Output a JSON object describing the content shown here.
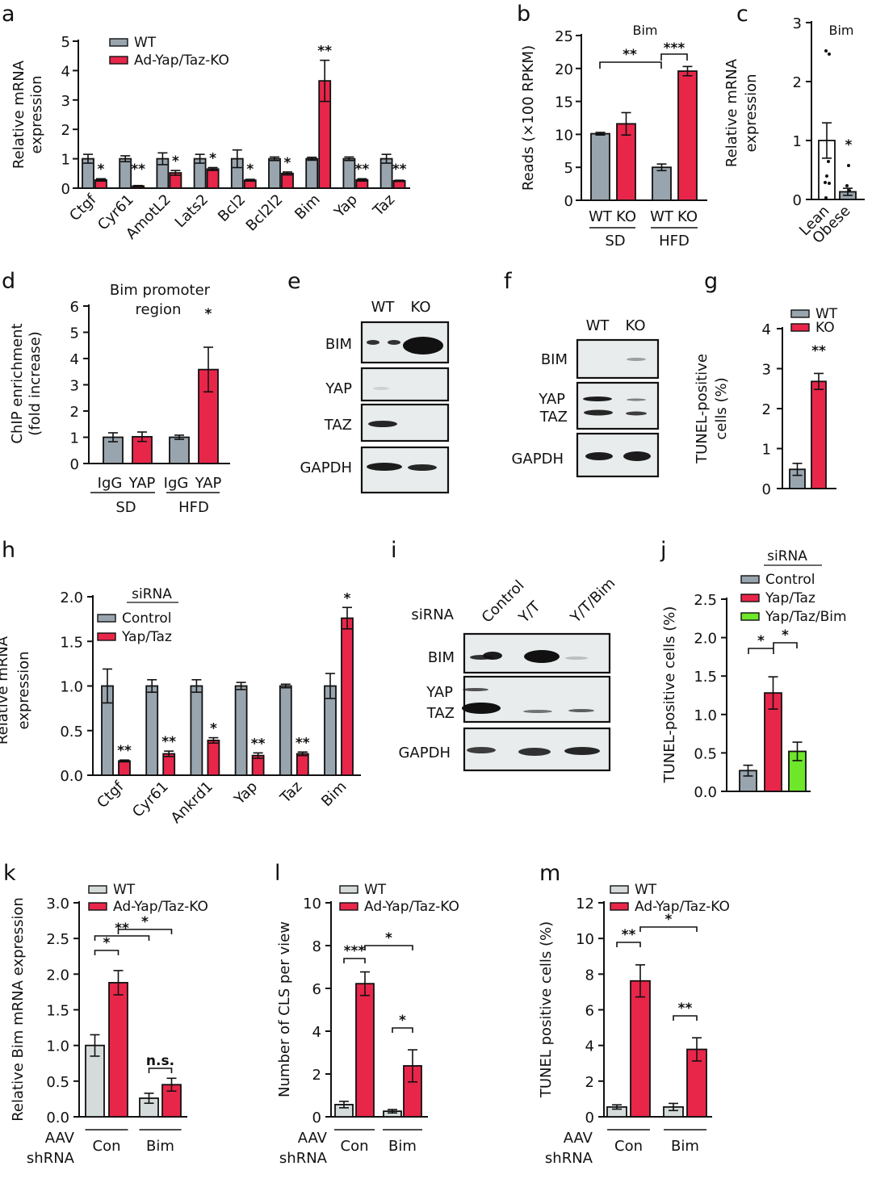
{
  "colors": {
    "wt": "#99a5ae",
    "ko": "#e8264a",
    "ctrl_light": "#d5dbdb",
    "green": "#6ee62a",
    "axis": "#111111",
    "blot_bg": "#e9ecec"
  },
  "chart_data": [
    {
      "id": "a",
      "panel_label": "a",
      "type": "bar",
      "ylabel": [
        "Relative mRNA",
        "expression"
      ],
      "ylim": [
        0,
        5
      ],
      "yticks": [
        "0",
        "1",
        "2",
        "3",
        "4",
        "5"
      ],
      "ytick_values": [
        0,
        1,
        2,
        3,
        4,
        5
      ],
      "categories": [
        "Ctgf",
        "Cyr61",
        "AmotL2",
        "Lats2",
        "Bcl2",
        "Bcl2l2",
        "Bim",
        "Yap",
        "Taz"
      ],
      "legend": [
        "WT",
        "Ad-Yap/Taz-KO"
      ],
      "series": [
        {
          "name": "WT",
          "color": "wt",
          "values": [
            1.0,
            1.0,
            1.0,
            1.0,
            1.0,
            1.0,
            1.0,
            1.0,
            1.0
          ],
          "err": [
            0.15,
            0.1,
            0.2,
            0.15,
            0.3,
            0.06,
            0.05,
            0.06,
            0.15
          ]
        },
        {
          "name": "Ad-Yap/Taz-KO",
          "color": "ko",
          "values": [
            0.28,
            0.07,
            0.52,
            0.65,
            0.27,
            0.5,
            3.65,
            0.28,
            0.25
          ],
          "err": [
            0.04,
            0.02,
            0.08,
            0.05,
            0.03,
            0.05,
            0.7,
            0.04,
            0.02
          ]
        }
      ],
      "significance": [
        "*",
        "**",
        "*",
        "*",
        "*",
        "*",
        "**",
        "**",
        "**"
      ]
    },
    {
      "id": "b",
      "panel_label": "b",
      "type": "bar",
      "title": "Bim",
      "ylabel": [
        "Reads (×100 RPKM)"
      ],
      "ylim": [
        0,
        25
      ],
      "yticks": [
        "0",
        "5",
        "10",
        "15",
        "20",
        "25"
      ],
      "ytick_values": [
        0,
        5,
        10,
        15,
        20,
        25
      ],
      "categories": [
        "WT",
        "KO",
        "WT",
        "KO"
      ],
      "groups": [
        "SD",
        "HFD"
      ],
      "values": [
        10.1,
        11.6,
        5.0,
        19.6
      ],
      "err": [
        0.2,
        1.7,
        0.5,
        0.7
      ],
      "colors": [
        "wt",
        "ko",
        "wt",
        "ko"
      ],
      "brackets": [
        {
          "from": 0,
          "to": 2,
          "label": "**"
        },
        {
          "from": 2,
          "to": 3,
          "label": "***"
        }
      ]
    },
    {
      "id": "c",
      "panel_label": "c",
      "type": "bar",
      "title": "Bim",
      "ylabel": [
        "Relative mRNA",
        "expression"
      ],
      "ylim": [
        0,
        3
      ],
      "yticks": [
        "0",
        "1",
        "2",
        "3"
      ],
      "ytick_values": [
        0,
        1,
        2,
        3
      ],
      "categories": [
        "Lean",
        "Obese"
      ],
      "values": [
        1.0,
        0.13
      ],
      "err": [
        0.3,
        0.06
      ],
      "colors": [
        "white",
        "wt"
      ],
      "significance": [
        "",
        "*"
      ]
    },
    {
      "id": "d",
      "panel_label": "d",
      "type": "bar",
      "title": [
        "Bim promoter",
        "region"
      ],
      "ylabel": [
        "ChIP enrichment",
        "(fold increase)"
      ],
      "ylim": [
        0,
        6
      ],
      "yticks": [
        "0",
        "1",
        "2",
        "3",
        "4",
        "5",
        "6"
      ],
      "ytick_values": [
        0,
        1,
        2,
        3,
        4,
        5,
        6
      ],
      "categories": [
        "IgG",
        "YAP",
        "IgG",
        "YAP"
      ],
      "groups": [
        "SD",
        "HFD"
      ],
      "values": [
        1.0,
        1.02,
        1.0,
        3.58
      ],
      "err": [
        0.17,
        0.18,
        0.08,
        0.85
      ],
      "colors": [
        "wt",
        "ko",
        "wt",
        "ko"
      ],
      "significance": [
        "",
        "",
        "",
        "*"
      ]
    },
    {
      "id": "e",
      "panel_label": "e",
      "type": "blot",
      "lanes": [
        "WT",
        "KO"
      ],
      "rows": [
        "BIM",
        "YAP",
        "TAZ",
        "GAPDH"
      ]
    },
    {
      "id": "f",
      "panel_label": "f",
      "type": "blot",
      "lanes": [
        "WT",
        "KO"
      ],
      "rows": [
        "BIM",
        "YAP",
        "TAZ",
        "GAPDH"
      ]
    },
    {
      "id": "g",
      "panel_label": "g",
      "type": "bar",
      "ylabel": [
        "TUNEL-positive",
        "cells (%)"
      ],
      "ylim": [
        0,
        4
      ],
      "yticks": [
        "0",
        "1",
        "2",
        "3",
        "4"
      ],
      "ytick_values": [
        0,
        1,
        2,
        3,
        4
      ],
      "legend": [
        "WT",
        "KO"
      ],
      "values": [
        0.48,
        2.68
      ],
      "err": [
        0.15,
        0.2
      ],
      "colors": [
        "wt",
        "ko"
      ],
      "significance": [
        "",
        "**"
      ]
    },
    {
      "id": "h",
      "panel_label": "h",
      "type": "bar",
      "ylabel": [
        "Relative mRNA",
        "expression"
      ],
      "ylim": [
        0,
        2
      ],
      "yticks": [
        "0.0",
        "0.5",
        "1.0",
        "1.5",
        "2.0"
      ],
      "ytick_values": [
        0,
        0.5,
        1,
        1.5,
        2
      ],
      "categories": [
        "Ctgf",
        "Cyr61",
        "Ankrd1",
        "Yap",
        "Taz",
        "Bim"
      ],
      "legend_title": "siRNA",
      "legend": [
        "Control",
        "Yap/Taz"
      ],
      "series": [
        {
          "name": "Control",
          "color": "wt",
          "values": [
            1.0,
            1.0,
            1.0,
            1.0,
            1.0,
            1.0
          ],
          "err": [
            0.19,
            0.07,
            0.07,
            0.04,
            0.02,
            0.14
          ]
        },
        {
          "name": "Yap/Taz",
          "color": "ko",
          "values": [
            0.16,
            0.24,
            0.39,
            0.22,
            0.24,
            1.76
          ],
          "err": [
            0.01,
            0.03,
            0.03,
            0.03,
            0.02,
            0.12
          ]
        }
      ],
      "significance": [
        "**",
        "**",
        "*",
        "**",
        "**",
        "*"
      ]
    },
    {
      "id": "i",
      "panel_label": "i",
      "type": "blot",
      "row_header": "siRNA",
      "lanes": [
        "Control",
        "Y/T",
        "Y/T/Bim"
      ],
      "rows": [
        "BIM",
        "YAP",
        "TAZ",
        "GAPDH"
      ]
    },
    {
      "id": "j",
      "panel_label": "j",
      "type": "bar",
      "ylabel": [
        "TUNEL-positive cells (%)"
      ],
      "ylim": [
        0,
        2.5
      ],
      "yticks": [
        "0.0",
        "0.5",
        "1.0",
        "1.5",
        "2.0",
        "2.5"
      ],
      "ytick_values": [
        0,
        0.5,
        1,
        1.5,
        2,
        2.5
      ],
      "legend_title": "siRNA",
      "legend": [
        "Control",
        "Yap/Taz",
        "Yap/Taz/Bim"
      ],
      "values": [
        0.27,
        1.28,
        0.52
      ],
      "err": [
        0.07,
        0.21,
        0.12
      ],
      "colors": [
        "wt",
        "ko",
        "green"
      ],
      "brackets": [
        {
          "from": 0,
          "to": 1,
          "label": "*"
        },
        {
          "from": 1,
          "to": 2,
          "label": "*"
        }
      ]
    },
    {
      "id": "k",
      "panel_label": "k",
      "type": "bar",
      "ylabel": [
        "Relative Bim mRNA expression"
      ],
      "ylim": [
        0,
        3
      ],
      "yticks": [
        "0.0",
        "0.5",
        "1.0",
        "1.5",
        "2.0",
        "2.5",
        "3.0"
      ],
      "ytick_values": [
        0,
        0.5,
        1,
        1.5,
        2,
        2.5,
        3
      ],
      "legend": [
        "WT",
        "Ad-Yap/Taz-KO"
      ],
      "x_title": [
        "AAV",
        "shRNA"
      ],
      "groups": [
        "Con",
        "Bim"
      ],
      "values": [
        1.0,
        1.88,
        0.26,
        0.45
      ],
      "err": [
        0.15,
        0.17,
        0.07,
        0.09
      ],
      "colors": [
        "ctrl_light",
        "ko",
        "ctrl_light",
        "ko"
      ],
      "brackets": [
        {
          "from": 0,
          "to": 1,
          "label": "*",
          "level": 0
        },
        {
          "from": 0,
          "to": 2,
          "label": "**",
          "level": 1
        },
        {
          "from": 1,
          "to": 3,
          "label": "*",
          "level": 2
        },
        {
          "from": 2,
          "to": 3,
          "label": "n.s.",
          "level": -1
        }
      ]
    },
    {
      "id": "l",
      "panel_label": "l",
      "type": "bar",
      "ylabel": [
        "Number of CLS per view"
      ],
      "ylim": [
        0,
        10
      ],
      "yticks": [
        "0",
        "2",
        "4",
        "6",
        "8",
        "10"
      ],
      "ytick_values": [
        0,
        2,
        4,
        6,
        8,
        10
      ],
      "legend": [
        "WT",
        "Ad-Yap/Taz-KO"
      ],
      "x_title": [
        "AAV",
        "shRNA"
      ],
      "groups": [
        "Con",
        "Bim"
      ],
      "values": [
        0.57,
        6.22,
        0.26,
        2.38
      ],
      "err": [
        0.15,
        0.55,
        0.08,
        0.75
      ],
      "colors": [
        "ctrl_light",
        "ko",
        "ctrl_light",
        "ko"
      ],
      "brackets": [
        {
          "from": 0,
          "to": 1,
          "label": "***",
          "level": 0
        },
        {
          "from": 1,
          "to": 3,
          "label": "*",
          "level": 1
        },
        {
          "from": 2,
          "to": 3,
          "label": "*",
          "level": -1
        }
      ]
    },
    {
      "id": "m",
      "panel_label": "m",
      "type": "bar",
      "ylabel": [
        "TUNEL positive cells (%)"
      ],
      "ylim": [
        0,
        12
      ],
      "yticks": [
        "0",
        "2",
        "4",
        "6",
        "8",
        "10",
        "12"
      ],
      "ytick_values": [
        0,
        2,
        4,
        6,
        8,
        10,
        12
      ],
      "legend": [
        "WT",
        "Ad-Yap/Taz-KO"
      ],
      "x_title": [
        "AAV",
        "shRNA"
      ],
      "groups": [
        "Con",
        "Bim"
      ],
      "values": [
        0.55,
        7.62,
        0.55,
        3.78
      ],
      "err": [
        0.12,
        0.9,
        0.2,
        0.65
      ],
      "colors": [
        "ctrl_light",
        "ko",
        "ctrl_light",
        "ko"
      ],
      "brackets": [
        {
          "from": 0,
          "to": 1,
          "label": "**",
          "level": 0
        },
        {
          "from": 1,
          "to": 3,
          "label": "*",
          "level": 1
        },
        {
          "from": 2,
          "to": 3,
          "label": "**",
          "level": -1
        }
      ]
    }
  ]
}
